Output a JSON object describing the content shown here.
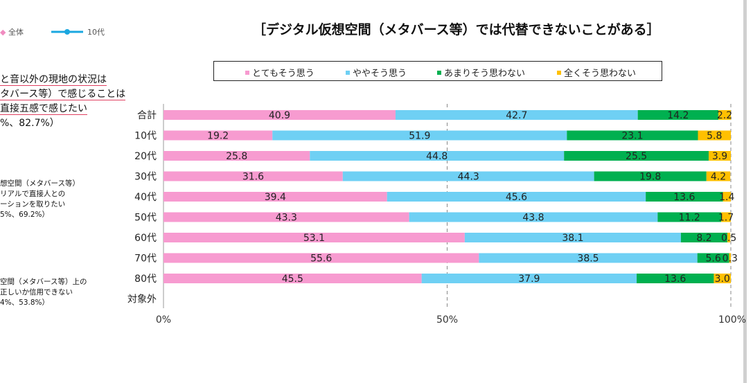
{
  "left_panel": {
    "legend": [
      {
        "label": "全体",
        "color": "#f08cc0"
      },
      {
        "label": "10代",
        "color": "#1aa7e0"
      }
    ],
    "note1": [
      "と音以外の現地の状況は",
      "タバース等）で感じることは",
      "直接五感で感じたい",
      "%、82.7%）"
    ],
    "note2": [
      "想空間（メタバース等）",
      "リアルで直接人との",
      "ーションを取りたい",
      "5%、69.2%）"
    ],
    "note3": [
      "空間（メタバース等）上の",
      "正しいか信用できない",
      "4%、53.8%）"
    ]
  },
  "chart_data": {
    "type": "bar",
    "orientation": "horizontal-stacked",
    "title": "［デジタル仮想空間（メタバース等）では代替できないことがある］",
    "categories": [
      "合計",
      "10代",
      "20代",
      "30代",
      "40代",
      "50代",
      "60代",
      "70代",
      "80代",
      "対象外"
    ],
    "series": [
      {
        "name": "とてもそう思う",
        "color": "#f79bd0",
        "values": [
          40.9,
          19.2,
          25.8,
          31.6,
          39.4,
          43.3,
          53.1,
          55.6,
          45.5,
          null
        ]
      },
      {
        "name": "ややそう思う",
        "color": "#6fd0f4",
        "values": [
          42.7,
          51.9,
          44.8,
          44.3,
          45.6,
          43.8,
          38.1,
          38.5,
          37.9,
          null
        ]
      },
      {
        "name": "あまりそう思わない",
        "color": "#00b050",
        "values": [
          14.2,
          23.1,
          25.5,
          19.8,
          13.6,
          11.2,
          8.2,
          5.6,
          13.6,
          null
        ]
      },
      {
        "name": "全くそう思わない",
        "color": "#ffc000",
        "values": [
          2.2,
          5.8,
          3.9,
          4.2,
          1.4,
          1.7,
          0.5,
          0.3,
          3.0,
          null
        ]
      }
    ],
    "x_ticks": [
      "0%",
      "50%",
      "100%"
    ],
    "xlim": [
      0,
      100
    ],
    "gridlines": [
      50,
      100
    ],
    "legend_position": "top"
  }
}
